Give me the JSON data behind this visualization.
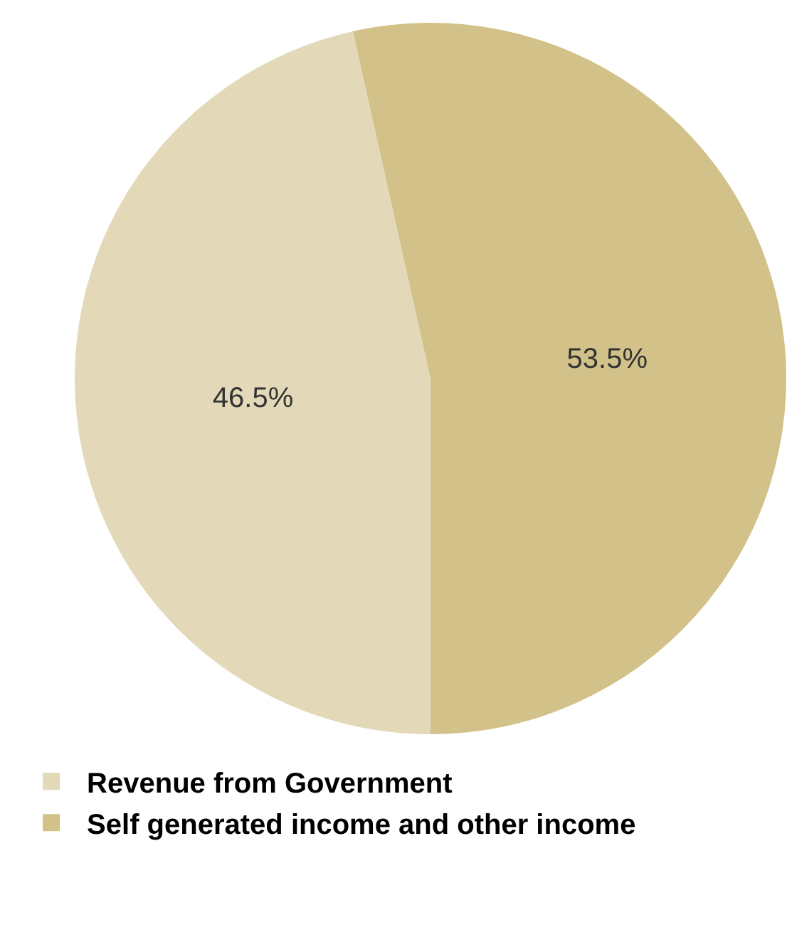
{
  "chart_data": {
    "type": "pie",
    "categories": [
      "Revenue from Government",
      "Self generated income and other income"
    ],
    "values": [
      46.5,
      53.5
    ],
    "value_labels": [
      "46.5%",
      "53.5%"
    ],
    "colors": [
      "#e3d9b9",
      "#d2c188"
    ],
    "legend": "bottom"
  }
}
